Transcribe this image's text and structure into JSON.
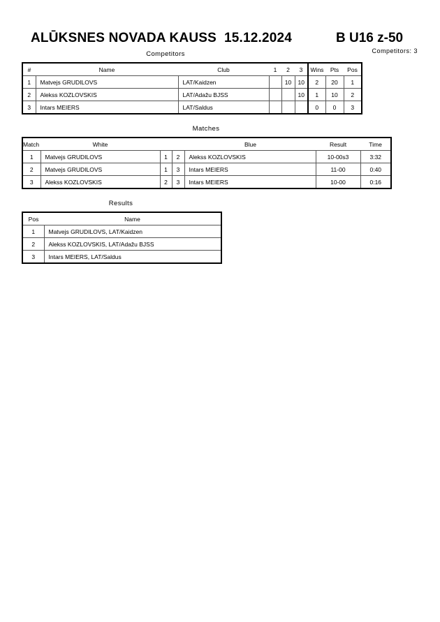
{
  "header": {
    "title": "ALŪKSNES NOVADA KAUSS  15.12.2024",
    "category": "B U16 z-50",
    "competitors_count": "Competitors: 3"
  },
  "competitors": {
    "label": "Competitors",
    "columns": [
      "#",
      "Name",
      "Club",
      "1",
      "2",
      "3",
      "Wins",
      "Pts",
      "Pos"
    ],
    "rows": [
      [
        "1",
        "Matvejs GRUDILOVS",
        "LAT/Kaidzen",
        "",
        "10",
        "10",
        "2",
        "20",
        "1"
      ],
      [
        "2",
        "Alekss KOZLOVSKIS",
        "LAT/Adažu BJSS",
        "",
        "",
        "10",
        "1",
        "10",
        "2"
      ],
      [
        "3",
        "Intars MEIERS",
        "LAT/Saldus",
        "",
        "",
        "",
        "0",
        "0",
        "3"
      ]
    ]
  },
  "matches": {
    "label": "Matches",
    "columns": [
      "Match",
      "White",
      "Blue",
      "Result",
      "Time"
    ],
    "rows": [
      [
        "1",
        "Matvejs GRUDILOVS",
        "1",
        "2",
        "Alekss KOZLOVSKIS",
        "10-00s3",
        "3:32"
      ],
      [
        "2",
        "Matvejs GRUDILOVS",
        "1",
        "3",
        "Intars MEIERS",
        "11-00",
        "0:40"
      ],
      [
        "3",
        "Alekss KOZLOVSKIS",
        "2",
        "3",
        "Intars MEIERS",
        "10-00",
        "0:16"
      ]
    ]
  },
  "results": {
    "label": "Results",
    "columns": [
      "Pos",
      "Name"
    ],
    "rows": [
      [
        "1",
        "Matvejs GRUDILOVS, LAT/Kaidzen"
      ],
      [
        "2",
        "Alekss KOZLOVSKIS, LAT/Adažu BJSS"
      ],
      [
        "3",
        "Intars MEIERS, LAT/Saldus"
      ]
    ]
  }
}
